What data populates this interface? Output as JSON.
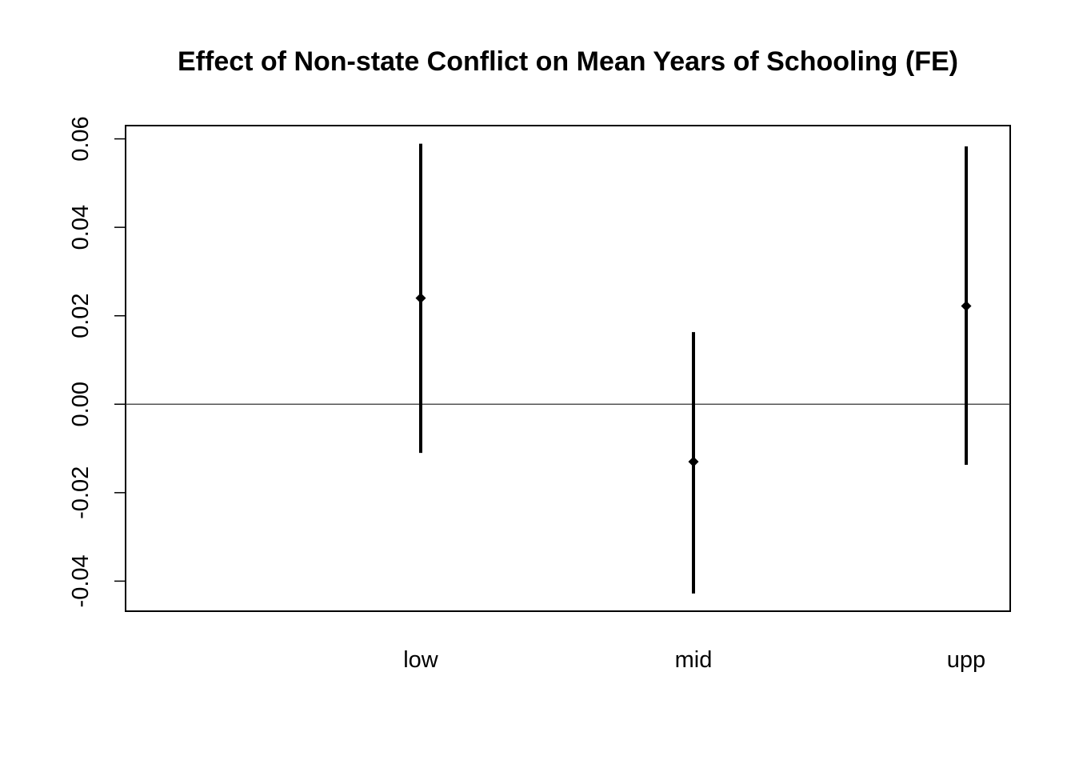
{
  "chart_data": {
    "type": "errorbar",
    "title": "Effect of Non-state Conflict on Mean Years of Schooling (FE)",
    "xlabel": "",
    "ylabel": "",
    "categories": [
      "low",
      "mid",
      "upp"
    ],
    "estimates": [
      0.024,
      -0.013,
      0.0222
    ],
    "lower": [
      -0.011,
      -0.0428,
      -0.0137
    ],
    "upper": [
      0.0589,
      0.0163,
      0.0583
    ],
    "ylim": [
      -0.0468,
      0.063
    ],
    "yticks": [
      -0.04,
      -0.02,
      0.0,
      0.02,
      0.04,
      0.06
    ],
    "ytick_labels": [
      "-0.04",
      "-0.02",
      "0.00",
      "0.02",
      "0.04",
      "0.06"
    ],
    "reference_line": 0,
    "grid": false,
    "legend": "none",
    "colors": {
      "marks": "#000000",
      "reference_line": "#333333"
    }
  }
}
